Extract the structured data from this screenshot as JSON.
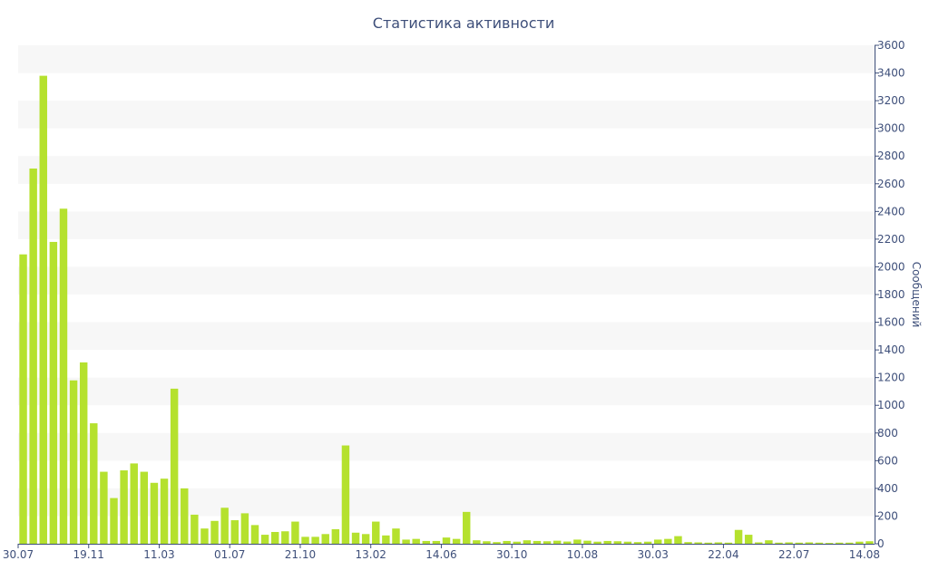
{
  "chart_data": {
    "type": "bar",
    "title": "Статистика активности",
    "ylabel": "Сообщений",
    "ylim": [
      0,
      3600
    ],
    "y_ticks": [
      "0",
      "200",
      "400",
      "600",
      "800",
      "1000",
      "1200",
      "1400",
      "1600",
      "1800",
      "2000",
      "2200",
      "2400",
      "2600",
      "2800",
      "3000",
      "3200",
      "3400",
      "3600"
    ],
    "x_tick_labels": [
      {
        "index": 0,
        "label": "30.07"
      },
      {
        "index": 7,
        "label": "19.11"
      },
      {
        "index": 14,
        "label": "11.03"
      },
      {
        "index": 21,
        "label": "01.07"
      },
      {
        "index": 28,
        "label": "21.10"
      },
      {
        "index": 35,
        "label": "13.02"
      },
      {
        "index": 42,
        "label": "14.06"
      },
      {
        "index": 49,
        "label": "30.10"
      },
      {
        "index": 56,
        "label": "10.08"
      },
      {
        "index": 63,
        "label": "30.03"
      },
      {
        "index": 70,
        "label": "22.04"
      },
      {
        "index": 77,
        "label": "22.07"
      },
      {
        "index": 84,
        "label": "14.08"
      }
    ],
    "values": [
      2090,
      2710,
      3380,
      2180,
      2420,
      1180,
      1310,
      870,
      520,
      330,
      530,
      580,
      520,
      440,
      470,
      1120,
      400,
      210,
      110,
      165,
      260,
      170,
      220,
      135,
      65,
      85,
      90,
      160,
      50,
      50,
      70,
      105,
      710,
      80,
      70,
      160,
      60,
      110,
      30,
      35,
      20,
      20,
      45,
      35,
      230,
      25,
      18,
      12,
      20,
      15,
      25,
      20,
      18,
      22,
      16,
      30,
      22,
      15,
      20,
      18,
      15,
      12,
      15,
      30,
      35,
      55,
      12,
      10,
      8,
      10,
      8,
      100,
      65,
      10,
      25,
      8,
      10,
      8,
      10,
      8,
      6,
      8,
      8,
      15,
      18
    ],
    "bar_color": "#b5e12e",
    "band_color": "#f7f7f7",
    "axis_color": "#3e4f7a",
    "grid": true
  }
}
